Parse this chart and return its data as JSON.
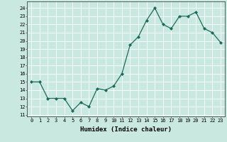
{
  "x": [
    0,
    1,
    2,
    3,
    4,
    5,
    6,
    7,
    8,
    9,
    10,
    11,
    12,
    13,
    14,
    15,
    16,
    17,
    18,
    19,
    20,
    21,
    22,
    23
  ],
  "y": [
    15,
    15,
    13,
    13,
    13,
    11.5,
    12.5,
    12,
    14.2,
    14,
    14.5,
    16,
    19.5,
    20.5,
    22.5,
    24,
    22,
    21.5,
    23,
    23,
    23.5,
    21.5,
    21,
    19.8
  ],
  "xlabel": "Humidex (Indice chaleur)",
  "ylabel_ticks": [
    11,
    12,
    13,
    14,
    15,
    16,
    17,
    18,
    19,
    20,
    21,
    22,
    23,
    24
  ],
  "ylim": [
    10.8,
    24.8
  ],
  "xlim": [
    -0.5,
    23.5
  ],
  "line_color": "#1a6b5a",
  "marker_color": "#1a6b5a",
  "bg_color": "#c8e8e0",
  "grid_color": "#ffffff",
  "font_size_ticks": 5,
  "font_size_xlabel": 6.5
}
